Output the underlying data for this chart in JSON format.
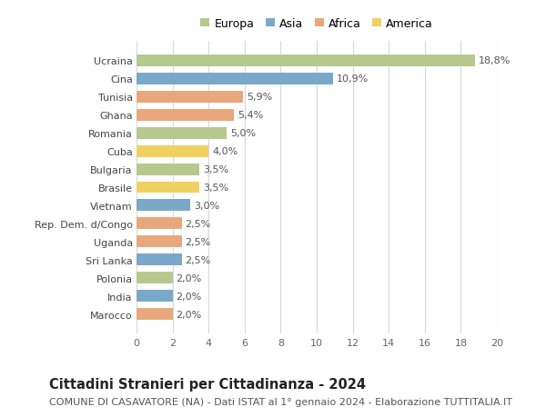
{
  "categories": [
    "Ucraina",
    "Cina",
    "Tunisia",
    "Ghana",
    "Romania",
    "Cuba",
    "Bulgaria",
    "Brasile",
    "Vietnam",
    "Rep. Dem. d/Congo",
    "Uganda",
    "Sri Lanka",
    "Polonia",
    "India",
    "Marocco"
  ],
  "values": [
    18.8,
    10.9,
    5.9,
    5.4,
    5.0,
    4.0,
    3.5,
    3.5,
    3.0,
    2.5,
    2.5,
    2.5,
    2.0,
    2.0,
    2.0
  ],
  "labels": [
    "18,8%",
    "10,9%",
    "5,9%",
    "5,4%",
    "5,0%",
    "4,0%",
    "3,5%",
    "3,5%",
    "3,0%",
    "2,5%",
    "2,5%",
    "2,5%",
    "2,0%",
    "2,0%",
    "2,0%"
  ],
  "continents": [
    "Europa",
    "Asia",
    "Africa",
    "Africa",
    "Europa",
    "America",
    "Europa",
    "America",
    "Asia",
    "Africa",
    "Africa",
    "Asia",
    "Europa",
    "Asia",
    "Africa"
  ],
  "continent_colors": {
    "Europa": "#b5c98e",
    "Asia": "#7aa8c8",
    "Africa": "#e8a87c",
    "America": "#f0d060"
  },
  "legend_order": [
    "Europa",
    "Asia",
    "Africa",
    "America"
  ],
  "title": "Cittadini Stranieri per Cittadinanza - 2024",
  "subtitle": "COMUNE DI CASAVATORE (NA) - Dati ISTAT al 1° gennaio 2024 - Elaborazione TUTTITALIA.IT",
  "xlim": [
    0,
    20
  ],
  "xticks": [
    0,
    2,
    4,
    6,
    8,
    10,
    12,
    14,
    16,
    18,
    20
  ],
  "background_color": "#ffffff",
  "grid_color": "#d8d8d8",
  "bar_height": 0.65,
  "title_fontsize": 10.5,
  "subtitle_fontsize": 8,
  "label_fontsize": 8,
  "tick_fontsize": 8,
  "legend_fontsize": 9
}
